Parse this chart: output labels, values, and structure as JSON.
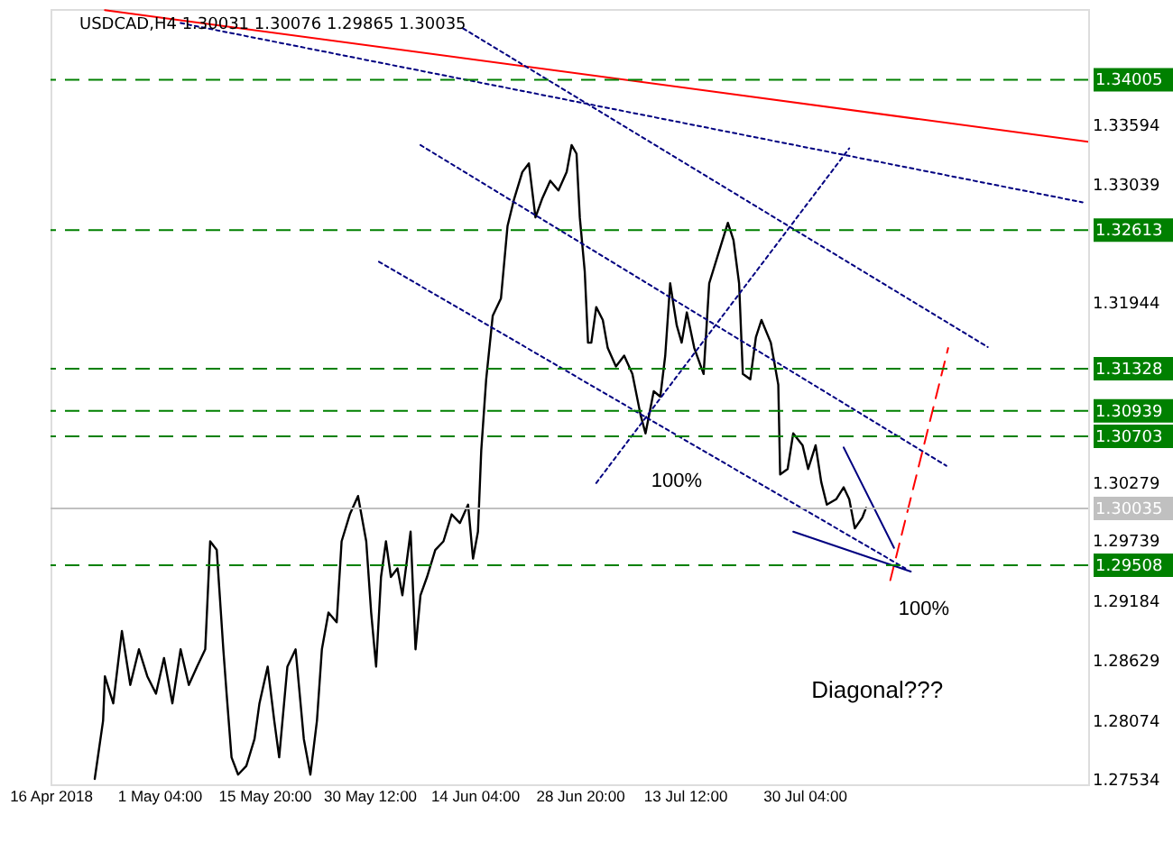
{
  "chart_data": {
    "type": "line",
    "title": "USDCAD,H4  1.30031 1.30076 1.29865 1.30035",
    "xlim": [
      "2018-04-16T00:00",
      "2018-09-07T18:00"
    ],
    "xticks": [
      {
        "value": "2018-04-16T00:00",
        "label": "16 Apr 2018"
      },
      {
        "value": "2018-05-01T04:00",
        "label": "1 May 04:00"
      },
      {
        "value": "2018-05-15T20:00",
        "label": "15 May 20:00"
      },
      {
        "value": "2018-05-30T12:00",
        "label": "30 May 12:00"
      },
      {
        "value": "2018-06-14T04:00",
        "label": "14 Jun 04:00"
      },
      {
        "value": "2018-06-28T20:00",
        "label": "28 Jun 20:00"
      },
      {
        "value": "2018-07-13T12:00",
        "label": "13 Jul 12:00"
      },
      {
        "value": "2018-07-30T04:00",
        "label": "30 Jul 04:00"
      }
    ],
    "ylim": [
      1.2748,
      1.3466
    ],
    "yticks": [
      1.27534,
      1.28074,
      1.28629,
      1.29184,
      1.29739,
      1.30279,
      1.31944,
      1.33039,
      1.33594
    ],
    "grid": false,
    "marker": "none",
    "line_style": "solid",
    "x": [
      "2018-04-22T04:00",
      "2018-04-23T08:00",
      "2018-04-23T14:00",
      "2018-04-24T18:00",
      "2018-04-25T23:00",
      "2018-04-27T03:00",
      "2018-04-28T08:00",
      "2018-04-29T12:00",
      "2018-04-30T17:00",
      "2018-05-01T20:00",
      "2018-05-03T00:00",
      "2018-05-04T03:30",
      "2018-05-05T07:00",
      "2018-05-06T10:30",
      "2018-05-07T14:00",
      "2018-05-08T06:30",
      "2018-05-09T04:30",
      "2018-05-10T02:30",
      "2018-05-10T13:30",
      "2018-05-11T06:00",
      "2018-05-12T04:00",
      "2018-05-13T07:30",
      "2018-05-14T11:00",
      "2018-05-15T03:30",
      "2018-05-16T07:00",
      "2018-05-17T05:00",
      "2018-05-17T21:30",
      "2018-05-19T01:00",
      "2018-05-20T04:30",
      "2018-05-21T08:00",
      "2018-05-22T06:00",
      "2018-05-23T04:00",
      "2018-05-23T20:30",
      "2018-05-24T18:30",
      "2018-05-25T22:00",
      "2018-05-26T14:30",
      "2018-05-27T18:00",
      "2018-05-28T21:30",
      "2018-05-30T01:00",
      "2018-05-30T17:30",
      "2018-05-31T10:00",
      "2018-06-01T02:30",
      "2018-06-01T19:00",
      "2018-06-02T11:30",
      "2018-06-03T09:30",
      "2018-06-04T02:00",
      "2018-06-05T05:30",
      "2018-06-05T22:00",
      "2018-06-06T14:30",
      "2018-06-07T12:30",
      "2018-06-08T16:00",
      "2018-06-09T19:30",
      "2018-06-10T23:00",
      "2018-06-12T02:30",
      "2018-06-13T06:00",
      "2018-06-13T22:30",
      "2018-06-14T15:00",
      "2018-06-15T02:00",
      "2018-06-15T18:30",
      "2018-06-16T16:30",
      "2018-06-17T20:00",
      "2018-06-18T18:00",
      "2018-06-19T16:00",
      "2018-06-20T19:30",
      "2018-06-21T17:30",
      "2018-06-22T15:30",
      "2018-06-23T13:30",
      "2018-06-24T17:00",
      "2018-06-25T20:30",
      "2018-06-27T00:00",
      "2018-06-27T16:30",
      "2018-06-28T09:00",
      "2018-06-28T20:00",
      "2018-06-29T12:30",
      "2018-06-29T23:30",
      "2018-06-30T10:30",
      "2018-07-01T03:00",
      "2018-07-02T01:00",
      "2018-07-02T17:30",
      "2018-07-03T21:00",
      "2018-07-05T00:30",
      "2018-07-06T04:00",
      "2018-07-07T07:30",
      "2018-07-08T00:00",
      "2018-07-09T03:30",
      "2018-07-10T01:30",
      "2018-07-10T18:00",
      "2018-07-11T10:30",
      "2018-07-12T08:30",
      "2018-07-13T01:00",
      "2018-07-13T18:15",
      "2018-07-14T19:15",
      "2018-07-16T02:30",
      "2018-07-16T21:15",
      "2018-07-18T04:30",
      "2018-07-19T11:45",
      "2018-07-20T06:30",
      "2018-07-21T01:15",
      "2018-07-21T13:45",
      "2018-07-22T14:45",
      "2018-07-23T09:30",
      "2018-07-24T04:15",
      "2018-07-25T11:30",
      "2018-07-26T12:30",
      "2018-07-26T18:45",
      "2018-07-27T19:45",
      "2018-07-28T14:30",
      "2018-07-29T21:45",
      "2018-07-30T16:30",
      "2018-07-31T17:30",
      "2018-08-01T12:15",
      "2018-08-02T07:00",
      "2018-08-03T14:15",
      "2018-08-04T15:15",
      "2018-08-05T10:00",
      "2018-08-06T04:45",
      "2018-08-07T05:45",
      "2018-08-07T18:15"
    ],
    "series": [
      {
        "color": "#000000",
        "values": [
          1.2753,
          1.2807,
          1.2848,
          1.2823,
          1.289,
          1.284,
          1.2873,
          1.2848,
          1.2832,
          1.2865,
          1.2823,
          1.2873,
          1.284,
          1.2857,
          1.2873,
          1.2973,
          1.2965,
          1.2873,
          1.2832,
          1.2773,
          1.2757,
          1.2765,
          1.279,
          1.2823,
          1.2857,
          1.2807,
          1.2773,
          1.2857,
          1.2873,
          1.279,
          1.2757,
          1.2807,
          1.2873,
          1.2907,
          1.2898,
          1.2973,
          1.2998,
          1.3015,
          1.2973,
          1.2907,
          1.2857,
          1.294,
          1.2973,
          1.294,
          1.2948,
          1.2923,
          1.2982,
          1.2873,
          1.2923,
          1.294,
          1.2965,
          1.2973,
          1.2998,
          1.299,
          1.3007,
          1.2957,
          1.2982,
          1.3057,
          1.3123,
          1.3182,
          1.3198,
          1.3265,
          1.329,
          1.3315,
          1.3323,
          1.3273,
          1.329,
          1.3307,
          1.3298,
          1.3315,
          1.334,
          1.3332,
          1.3273,
          1.3223,
          1.3157,
          1.3157,
          1.319,
          1.3178,
          1.3152,
          1.3135,
          1.3145,
          1.3128,
          1.309,
          1.3073,
          1.3112,
          1.3107,
          1.3145,
          1.3212,
          1.3173,
          1.3157,
          1.3185,
          1.3152,
          1.3128,
          1.3212,
          1.324,
          1.3268,
          1.3252,
          1.3212,
          1.3128,
          1.3123,
          1.3162,
          1.3178,
          1.3157,
          1.3118,
          1.3035,
          1.304,
          1.3073,
          1.3062,
          1.304,
          1.3062,
          1.3028,
          1.3007,
          1.3012,
          1.3023,
          1.3012,
          1.2985,
          1.2995,
          1.3004
        ]
      },
      {
        "type": "line",
        "color": "#ff0000",
        "line_style": "solid",
        "x": [
          "2018-04-23T14:00",
          "2018-09-07T18:00"
        ],
        "values": [
          1.3465,
          1.3343
        ]
      },
      {
        "type": "line",
        "color": "#000080",
        "line_style": "dotted",
        "x": [
          "2018-05-04T03:30",
          "2018-09-06T23:15"
        ],
        "values": [
          1.3453,
          1.3287
        ]
      },
      {
        "type": "line",
        "color": "#000080",
        "line_style": "dotted",
        "x": [
          "2018-06-12T13:30",
          "2018-08-24T17:30"
        ],
        "values": [
          1.3448,
          1.3153
        ]
      },
      {
        "type": "line",
        "color": "#000080",
        "line_style": "dotted",
        "x": [
          "2018-06-06T14:30",
          "2018-08-18T23:00"
        ],
        "values": [
          1.334,
          1.3043
        ]
      },
      {
        "type": "line",
        "color": "#000080",
        "line_style": "dotted",
        "x": [
          "2018-05-31T19:30",
          "2018-08-13T05:30"
        ],
        "values": [
          1.3232,
          1.2948
        ]
      },
      {
        "type": "line",
        "color": "#000080",
        "line_style": "dotted",
        "x": [
          "2018-07-01T03:00",
          "2018-08-05T10:00"
        ],
        "values": [
          1.3027,
          1.3337
        ]
      },
      {
        "type": "line",
        "color": "#ff0000",
        "line_style": "dashed",
        "x": [
          "2018-08-11T03:30",
          "2018-08-19T05:15"
        ],
        "values": [
          1.2937,
          1.3152
        ]
      },
      {
        "type": "line",
        "color": "#000080",
        "line_style": "solid",
        "x": [
          "2018-08-04T15:15",
          "2018-08-11T16:00"
        ],
        "values": [
          1.306,
          1.2967
        ]
      },
      {
        "type": "line",
        "color": "#000080",
        "line_style": "solid",
        "x": [
          "2018-07-28T14:30",
          "2018-08-14T00:15"
        ],
        "values": [
          1.2982,
          1.2945
        ]
      }
    ],
    "ref_lines": [
      {
        "axis": "y",
        "value": 1.34005,
        "label": "1.34005",
        "color": "#008000",
        "line_style": "dashed"
      },
      {
        "axis": "y",
        "value": 1.32613,
        "label": "1.32613",
        "color": "#008000",
        "line_style": "dashed"
      },
      {
        "axis": "y",
        "value": 1.31328,
        "label": "1.31328",
        "color": "#008000",
        "line_style": "dashed"
      },
      {
        "axis": "y",
        "value": 1.30939,
        "label": "1.30939",
        "color": "#008000",
        "line_style": "dashed"
      },
      {
        "axis": "y",
        "value": 1.30703,
        "label": "1.30703",
        "color": "#008000",
        "line_style": "dashed"
      },
      {
        "axis": "y",
        "value": 1.30035,
        "label": "1.30035",
        "color": "#c0c0c0",
        "line_style": "solid"
      },
      {
        "axis": "y",
        "value": 1.29508,
        "label": "1.29508",
        "color": "#008000",
        "line_style": "dashed"
      }
    ],
    "annotations": [
      "100%",
      "100%",
      "Diagonal???"
    ]
  }
}
